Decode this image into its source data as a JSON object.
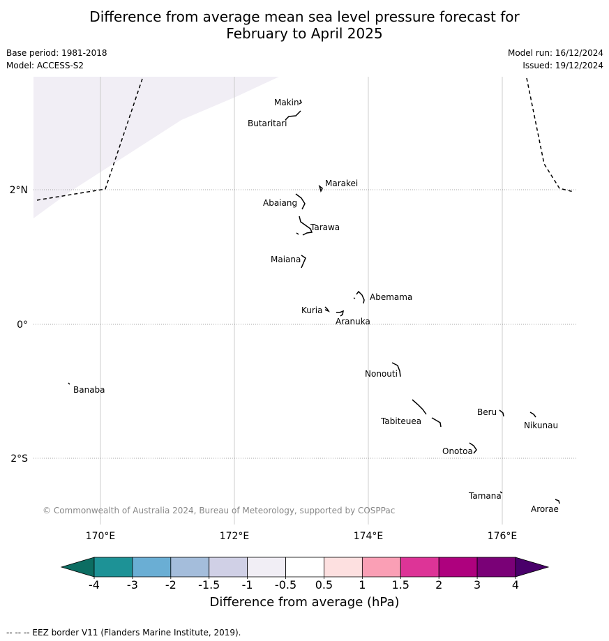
{
  "title": {
    "line1": "Difference from average mean sea level pressure forecast for",
    "line2": "February to April 2025"
  },
  "meta": {
    "base_period": "Base period: 1981-2018",
    "model": "Model: ACCESS-S2",
    "model_run": "Model run: 16/12/2024",
    "issued": "Issued: 19/12/2024"
  },
  "map": {
    "x_ticks": [
      "170°E",
      "172°E",
      "174°E",
      "176°E"
    ],
    "y_ticks": [
      "2°N",
      "0°",
      "2°S"
    ],
    "copyright": "© Commonwealth of Australia 2024, Bureau of Meteorology, supported by COSPPac",
    "places": [
      "Makin",
      "Butaritari",
      "Marakei",
      "Abaiang",
      "Tarawa",
      "Maiana",
      "Abemama",
      "Kuria",
      "Aranuka",
      "Nonouti",
      "Banaba",
      "Tabiteuea",
      "Beru",
      "Nikunau",
      "Onotoa",
      "Tamana",
      "Arorae"
    ],
    "shaded_region_color": "#f1eef5",
    "eez_line_color": "#000000"
  },
  "colorbar": {
    "title": "Difference from average (hPa)",
    "ticks": [
      "-4",
      "-3",
      "-2",
      "-1.5",
      "-1",
      "-0.5",
      "0.5",
      "1",
      "1.5",
      "2",
      "3",
      "4"
    ],
    "colors": [
      "#0c6d62",
      "#1d9296",
      "#6aaed4",
      "#a4bddb",
      "#d0d0e6",
      "#f1eef5",
      "#ffffff",
      "#fde0e0",
      "#fa9fb5",
      "#dd3497",
      "#ae017e",
      "#7a0177",
      "#49006a"
    ]
  },
  "footnote": "--  --  -- EEZ border V11 (Flanders Marine Institute, 2019)."
}
